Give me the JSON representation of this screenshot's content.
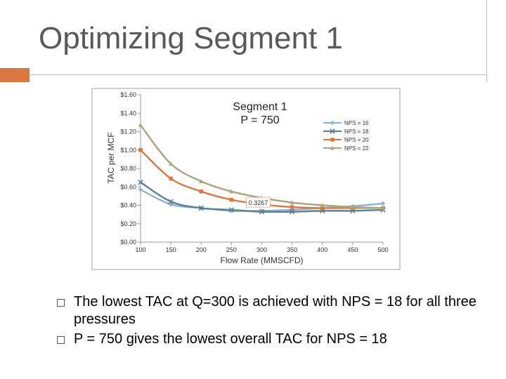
{
  "slide": {
    "title": "Optimizing Segment 1",
    "accent_color": "#d97941"
  },
  "bullets": [
    "The lowest TAC at Q=300 is achieved with NPS = 18 for all three pressures",
    "P = 750 gives the lowest overall TAC for NPS = 18"
  ],
  "chart_data": {
    "type": "line",
    "title_lines": [
      "Segment 1",
      "P = 750"
    ],
    "xlabel": "Flow Rate (MMSCFD)",
    "ylabel": "TAC per MCF",
    "xlim": [
      100,
      500
    ],
    "ylim": [
      0,
      1.6
    ],
    "x_ticks": [
      100,
      150,
      200,
      250,
      300,
      350,
      400,
      450,
      500
    ],
    "y_ticks": [
      0.0,
      0.2,
      0.4,
      0.6,
      0.8,
      1.0,
      1.2,
      1.4,
      1.6
    ],
    "y_tick_labels": [
      "$0.00",
      "$0.20",
      "$0.40",
      "$0.60",
      "$0.80",
      "$1.00",
      "$1.20",
      "$1.40",
      "$1.60"
    ],
    "grid": false,
    "legend_position": "top-right",
    "x": [
      100,
      150,
      200,
      250,
      300,
      350,
      400,
      450,
      500
    ],
    "series": [
      {
        "name": "NPS = 16",
        "color": "#8fb0d3",
        "marker": "diamond",
        "values": [
          0.57,
          0.41,
          0.37,
          0.34,
          0.34,
          0.35,
          0.37,
          0.39,
          0.42
        ]
      },
      {
        "name": "NPS = 18",
        "color": "#5b7f95",
        "marker": "x",
        "values": [
          0.65,
          0.44,
          0.37,
          0.35,
          0.33,
          0.33,
          0.34,
          0.34,
          0.35
        ]
      },
      {
        "name": "NPS = 20",
        "color": "#d97941",
        "marker": "square",
        "values": [
          1.0,
          0.69,
          0.55,
          0.46,
          0.41,
          0.38,
          0.37,
          0.37,
          0.37
        ]
      },
      {
        "name": "NPS = 22",
        "color": "#a9a57c",
        "marker": "triangle",
        "values": [
          1.27,
          0.85,
          0.66,
          0.55,
          0.48,
          0.43,
          0.4,
          0.38,
          0.37
        ]
      }
    ],
    "annotation": {
      "text": "0.3267",
      "x": 300,
      "y": 0.3267
    }
  }
}
